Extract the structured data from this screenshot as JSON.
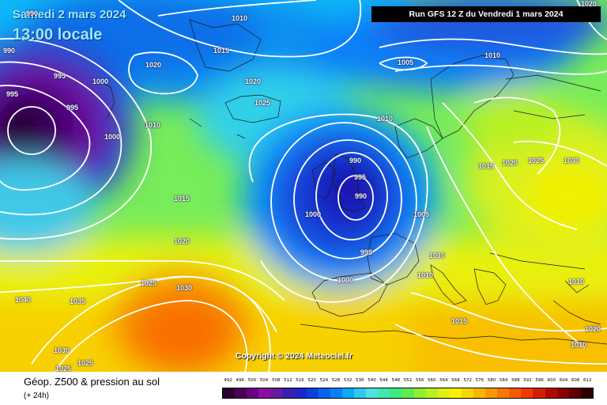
{
  "header": {
    "date": "Samedi 2 mars 2024",
    "time": "13:00 locale",
    "run": "Run GFS 12 Z du Vendredi 1 mars 2024"
  },
  "copyright": "Copyright © 2024 Meteociel.fr",
  "footer": {
    "title": "Géop. Z500 & pression au sol",
    "subtitle": "(+ 24h)"
  },
  "isobar_labels": [
    {
      "text": "990",
      "id": "iso-990-tl"
    },
    {
      "text": "1010",
      "id": "iso-1010-top"
    },
    {
      "text": "990",
      "id": "iso-990-left"
    },
    {
      "text": "1015",
      "id": "iso-1015-top"
    },
    {
      "text": "1020",
      "id": "iso-1020-nw"
    },
    {
      "text": "995",
      "id": "iso-995-l1"
    },
    {
      "text": "1000",
      "id": "iso-1000-l1"
    },
    {
      "text": "995",
      "id": "iso-995-l2"
    },
    {
      "text": "995",
      "id": "iso-995-l3"
    },
    {
      "text": "1020",
      "id": "iso-1020-ice"
    },
    {
      "text": "1025",
      "id": "iso-1025-ice"
    },
    {
      "text": "1010",
      "id": "iso-1010-l"
    },
    {
      "text": "1000",
      "id": "iso-1000-l2"
    },
    {
      "text": "1015",
      "id": "iso-1015-mid"
    },
    {
      "text": "1020",
      "id": "iso-1020-mid"
    },
    {
      "text": "1025",
      "id": "iso-1025-sw"
    },
    {
      "text": "1030",
      "id": "iso-1030-sw"
    },
    {
      "text": "1040",
      "id": "iso-1040"
    },
    {
      "text": "1035",
      "id": "iso-1035"
    },
    {
      "text": "1030",
      "id": "iso-1030-bl"
    },
    {
      "text": "1025",
      "id": "iso-1025-bl"
    },
    {
      "text": "1025",
      "id": "iso-1025-bl2"
    },
    {
      "text": "990",
      "id": "iso-990-c1"
    },
    {
      "text": "995",
      "id": "iso-995-c1"
    },
    {
      "text": "990",
      "id": "iso-990-c2"
    },
    {
      "text": "1000",
      "id": "iso-1000-c"
    },
    {
      "text": "995",
      "id": "iso-995-c2"
    },
    {
      "text": "1000",
      "id": "iso-1000-c2"
    },
    {
      "text": "1005",
      "id": "iso-1005-ne"
    },
    {
      "text": "1010",
      "id": "iso-1010-ne"
    },
    {
      "text": "1010",
      "id": "iso-1010-nsea"
    },
    {
      "text": "1005",
      "id": "iso-1005-e"
    },
    {
      "text": "1010",
      "id": "iso-1010-e1"
    },
    {
      "text": "1010",
      "id": "iso-1010-e2"
    },
    {
      "text": "1015",
      "id": "iso-1015-e"
    },
    {
      "text": "1015",
      "id": "iso-1015-scan"
    },
    {
      "text": "1020",
      "id": "iso-1020-scan"
    },
    {
      "text": "1025",
      "id": "iso-1025-scan"
    },
    {
      "text": "1030",
      "id": "iso-1030-ru"
    },
    {
      "text": "1010",
      "id": "iso-1010-far-e"
    },
    {
      "text": "1010",
      "id": "iso-1010-se"
    },
    {
      "text": "1020",
      "id": "iso-1020-se"
    },
    {
      "text": "1020",
      "id": "iso-1020-top-r"
    }
  ],
  "scale": {
    "labels": [
      "492",
      "496",
      "500",
      "504",
      "508",
      "512",
      "516",
      "520",
      "524",
      "528",
      "532",
      "536",
      "540",
      "544",
      "548",
      "552",
      "556",
      "560",
      "564",
      "568",
      "572",
      "576",
      "580",
      "584",
      "588",
      "592",
      "596",
      "600",
      "604",
      "608",
      "612"
    ],
    "colors": [
      "#2a0030",
      "#4a0058",
      "#6a0080",
      "#8a10a0",
      "#6a1aa0",
      "#3a20b0",
      "#1a28c8",
      "#0a40e0",
      "#0a60f0",
      "#0a80f8",
      "#10a8f8",
      "#30c8f0",
      "#50e0e0",
      "#40e8b0",
      "#40e880",
      "#60ec50",
      "#90f030",
      "#b8f020",
      "#e0f010",
      "#f8f000",
      "#f8d800",
      "#f8b800",
      "#f89800",
      "#f87800",
      "#f85800",
      "#f03800",
      "#d02000",
      "#b00800",
      "#8a0000",
      "#600000",
      "#300000"
    ]
  }
}
